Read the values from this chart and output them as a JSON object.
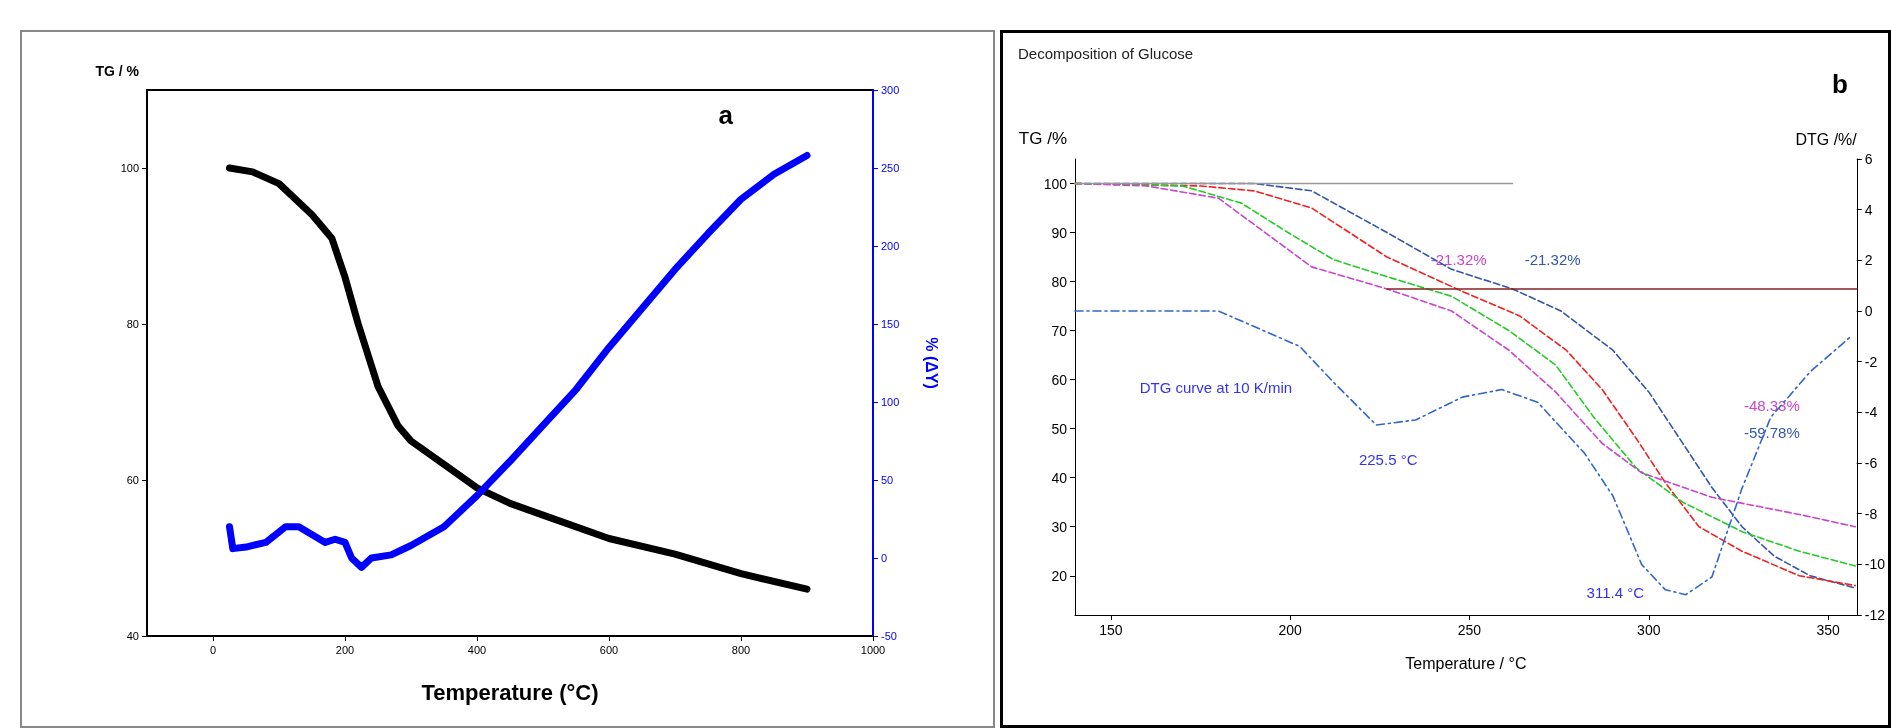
{
  "chart_data": [
    {
      "type": "line",
      "xlabel": "Temperature (°C)",
      "ylabel": "TG / %",
      "y2label": "% (ΔY)",
      "xlim": [
        -100,
        1000
      ],
      "xticks": [
        0,
        200,
        400,
        600,
        800,
        1000
      ],
      "ylim": [
        40,
        110
      ],
      "yticks": [
        40,
        60,
        80,
        100
      ],
      "y2lim": [
        -50,
        300
      ],
      "y2ticks": [
        -50,
        0,
        50,
        100,
        150,
        200,
        250,
        300
      ],
      "grid": false,
      "marker": "none",
      "annotations": [
        "a"
      ],
      "series": [
        {
          "color": "#000000",
          "x": [
            25,
            60,
            100,
            150,
            180,
            200,
            220,
            250,
            280,
            300,
            350,
            400,
            450,
            500,
            600,
            700,
            800,
            900
          ],
          "values": [
            100,
            99.5,
            98,
            94,
            91,
            86,
            80,
            72,
            67,
            65,
            62,
            59,
            57,
            55.5,
            52.5,
            50.5,
            48,
            46
          ]
        },
        {
          "color": "#0000ff",
          "axis": "y2",
          "x": [
            25,
            30,
            50,
            80,
            110,
            130,
            170,
            185,
            200,
            210,
            225,
            240,
            270,
            300,
            350,
            400,
            450,
            500,
            550,
            600,
            650,
            700,
            750,
            800,
            850,
            900
          ],
          "values": [
            20,
            6,
            7,
            10,
            20,
            20,
            10,
            12,
            10,
            0,
            -6,
            0,
            2,
            8,
            20,
            40,
            62,
            85,
            108,
            135,
            160,
            185,
            208,
            230,
            246,
            258
          ]
        }
      ]
    },
    {
      "type": "line",
      "title": "Decomposition of Glucose",
      "xlabel": "Temperature / °C",
      "ylabel": "TG /%",
      "y2label": "DTG /%/",
      "xlim": [
        140,
        358
      ],
      "xticks": [
        150,
        200,
        250,
        300,
        350
      ],
      "ylim": [
        12,
        105
      ],
      "yticks": [
        20,
        30,
        40,
        50,
        60,
        70,
        80,
        90,
        100
      ],
      "y2lim": [
        -12,
        6
      ],
      "y2ticks": [
        -12,
        -10,
        -8,
        -6,
        -4,
        -2,
        0,
        2,
        4,
        6
      ],
      "grid": false,
      "marker": "none",
      "annotations": [
        "b",
        "-21.32%",
        "-21.32%",
        "-48.33%",
        "-59.78%",
        "DTG curve at 10 K/min",
        "225.5 °C",
        "311.4 °C"
      ],
      "series": [
        {
          "color": "#3355aa",
          "line_style": "dashed",
          "x": [
            140,
            190,
            206,
            227,
            245,
            262,
            275.5,
            290,
            300,
            309.5,
            317.6,
            326,
            335,
            345,
            357.6
          ],
          "values": [
            100,
            100,
            98.5,
            90,
            82.5,
            78.5,
            74,
            66,
            57.5,
            47,
            38,
            30,
            24,
            20,
            17.5
          ]
        },
        {
          "color": "#ee2222",
          "line_style": "dashed",
          "x": [
            140,
            175,
            190,
            206,
            227,
            248,
            264,
            277,
            287,
            296.5,
            304.6,
            314,
            326,
            342,
            357.6
          ],
          "values": [
            100,
            99.5,
            98.5,
            95,
            85,
            78,
            73,
            66,
            58,
            48,
            39,
            30,
            25,
            20,
            18
          ]
        },
        {
          "color": "#22cc22",
          "line_style": "dashed",
          "x": [
            140,
            170,
            186.4,
            199.4,
            212,
            227,
            245,
            261,
            274,
            285,
            296.5,
            309.5,
            326,
            342,
            357.6
          ],
          "values": [
            100,
            99.5,
            96,
            90,
            84.5,
            81,
            77,
            70,
            63,
            52,
            42,
            35,
            29,
            25,
            22
          ]
        },
        {
          "color": "#cc44cc",
          "line_style": "dashed",
          "x": [
            140,
            160,
            180,
            193,
            206,
            227,
            245,
            261,
            274,
            287,
            298,
            317.6,
            342,
            357.6
          ],
          "values": [
            100,
            99.5,
            97,
            90,
            83,
            78.5,
            74,
            66,
            57.5,
            47,
            41,
            36,
            32.5,
            30
          ]
        },
        {
          "color": "#3366cc",
          "line_style": "dotted",
          "axis": "y2",
          "x": [
            140,
            180,
            202.7,
            212,
            224,
            235,
            248,
            259,
            269,
            282,
            290,
            298,
            304.6,
            310.3,
            317.6,
            326,
            334,
            345,
            356.4
          ],
          "values": [
            0,
            0,
            -1.4,
            -2.8,
            -4.5,
            -4.3,
            -3.4,
            -3.1,
            -3.6,
            -5.6,
            -7.3,
            -10,
            -11,
            -11.2,
            -10.5,
            -7,
            -4.2,
            -2.4,
            -1
          ]
        },
        {
          "color": "#999999",
          "line_style": "solid",
          "x": [
            140,
            262
          ],
          "values": [
            100,
            100
          ]
        },
        {
          "color": "#882222",
          "line_style": "solid",
          "x": [
            227,
            358
          ],
          "values": [
            78.5,
            78.5
          ]
        }
      ]
    }
  ]
}
